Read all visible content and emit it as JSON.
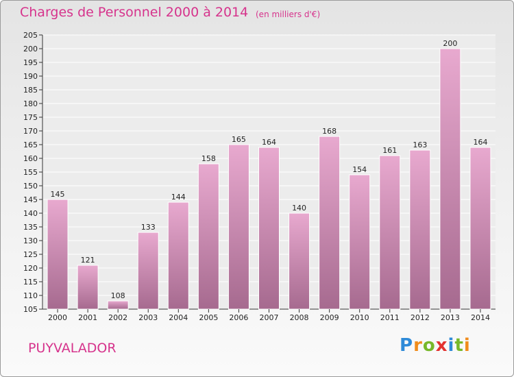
{
  "header": {
    "title": "Charges de Personnel 2000 à 2014",
    "subtitle": "(en milliers d'€)"
  },
  "footer": {
    "commune": "PUYVALADOR",
    "logo": {
      "letters": [
        "P",
        "r",
        "o",
        "x",
        "i",
        "t",
        "i"
      ],
      "colors": [
        "#2e8ad8",
        "#f08c1c",
        "#77b82a",
        "#e3322f",
        "#2e8ad8",
        "#77b82a",
        "#f08c1c"
      ],
      "text": "Proxiti"
    }
  },
  "colors": {
    "accent": "#d6338c",
    "bar_top": "#e8a9cf",
    "bar_bottom": "#a66a8f"
  },
  "chart_data": {
    "type": "bar",
    "title": "Charges de Personnel 2000 à 2014",
    "subtitle": "(en milliers d'€)",
    "xlabel": "",
    "ylabel": "",
    "categories": [
      "2000",
      "2001",
      "2002",
      "2003",
      "2004",
      "2005",
      "2006",
      "2007",
      "2008",
      "2009",
      "2010",
      "2011",
      "2012",
      "2013",
      "2014"
    ],
    "values": [
      145,
      121,
      108,
      133,
      144,
      158,
      165,
      164,
      140,
      168,
      154,
      161,
      163,
      200,
      164
    ],
    "ylim": [
      105,
      205
    ],
    "yticks": [
      105,
      110,
      115,
      120,
      125,
      130,
      135,
      140,
      145,
      150,
      155,
      160,
      165,
      170,
      175,
      180,
      185,
      190,
      195,
      200,
      205
    ],
    "grid": true,
    "legend": "none"
  }
}
